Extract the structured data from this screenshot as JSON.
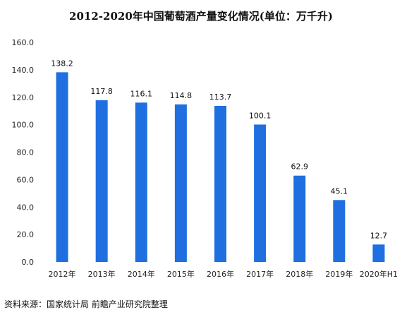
{
  "title": "2012-2020年中国葡萄酒产量变化情况(单位：万千升)",
  "source": "资料来源：国家统计局 前瞻产业研究院整理",
  "chart_data": {
    "type": "bar",
    "title": "2012-2020年中国葡萄酒产量变化情况(单位：万千升)",
    "categories": [
      "2012年",
      "2013年",
      "2014年",
      "2015年",
      "2016年",
      "2017年",
      "2018年",
      "2019年",
      "2020年H1"
    ],
    "values": [
      138.2,
      117.8,
      116.1,
      114.8,
      113.7,
      100.1,
      62.9,
      45.1,
      12.7
    ],
    "data_labels": [
      "138.2",
      "117.8",
      "116.1",
      "114.8",
      "113.7",
      "100.1",
      "62.9",
      "45.1",
      "12.7"
    ],
    "ylim": [
      0,
      160
    ],
    "yticks": [
      "0.0",
      "20.0",
      "40.0",
      "60.0",
      "80.0",
      "100.0",
      "120.0",
      "140.0",
      "160.0"
    ],
    "xlabel": "",
    "ylabel": "",
    "grid": false,
    "legend": "none",
    "bar_color": "#1f6fe0"
  }
}
